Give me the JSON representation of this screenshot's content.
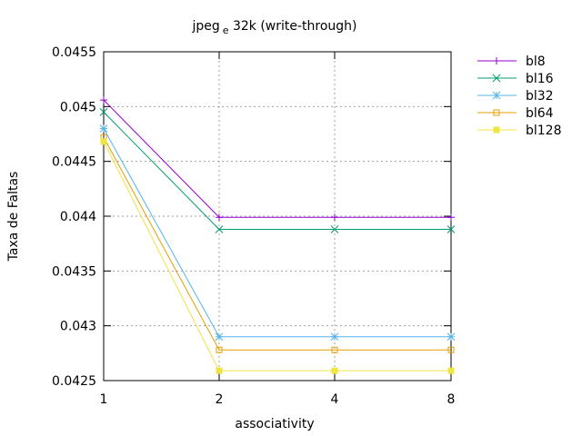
{
  "chart_data": {
    "type": "line",
    "title": {
      "main": "jpeg",
      "sub": "e",
      "rest": " 32k (write-through)"
    },
    "xlabel": "associativity",
    "ylabel": "Taxa de Faltas",
    "x": [
      1,
      2,
      4,
      8
    ],
    "x_tick_labels": [
      "1",
      "2",
      "4",
      "8"
    ],
    "y_ticks": [
      0.0425,
      0.043,
      0.0435,
      0.044,
      0.0445,
      0.045,
      0.0455
    ],
    "y_tick_labels": [
      "0.0425",
      "0.043",
      "0.0435",
      "0.044",
      "0.0445",
      "0.045",
      "0.0455"
    ],
    "ylim": [
      0.0425,
      0.0455
    ],
    "grid": true,
    "legend_position": "outside-right",
    "series": [
      {
        "name": "bl8",
        "color": "#9400d3",
        "marker": "plus",
        "values": [
          0.04506,
          0.04399,
          0.04399,
          0.04399
        ]
      },
      {
        "name": "bl16",
        "color": "#009e73",
        "marker": "cross",
        "values": [
          0.04495,
          0.04388,
          0.04388,
          0.04388
        ]
      },
      {
        "name": "bl32",
        "color": "#56b4e9",
        "marker": "star",
        "values": [
          0.0448,
          0.0429,
          0.0429,
          0.0429
        ]
      },
      {
        "name": "bl64",
        "color": "#e69f00",
        "marker": "open-square",
        "values": [
          0.04472,
          0.04278,
          0.04278,
          0.04278
        ]
      },
      {
        "name": "bl128",
        "color": "#f0e442",
        "marker": "filled-square",
        "values": [
          0.04468,
          0.04259,
          0.04259,
          0.04259
        ]
      }
    ]
  }
}
